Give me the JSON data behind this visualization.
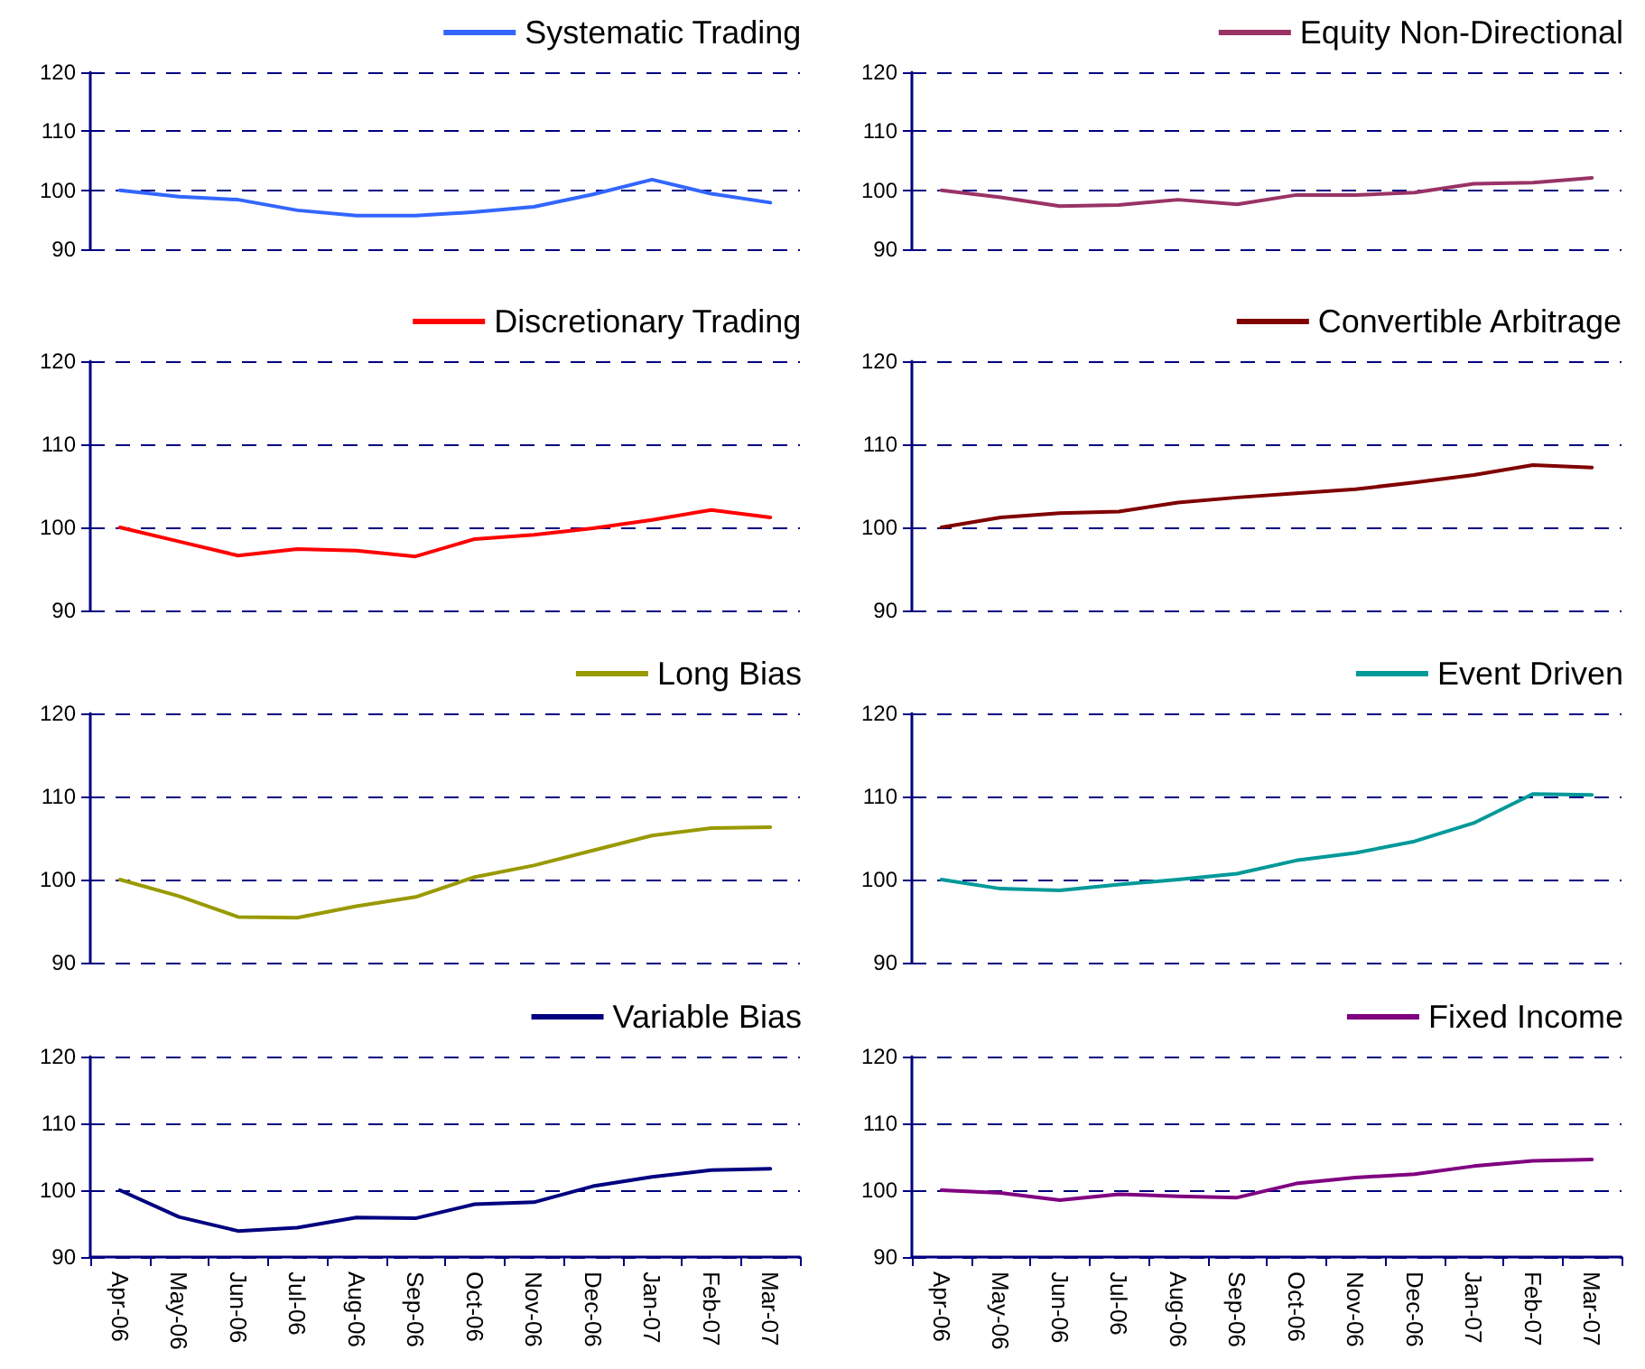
{
  "chart_data": [
    {
      "type": "line",
      "categories": [
        null,
        null,
        null,
        null,
        null,
        null,
        null,
        null,
        null,
        null,
        null,
        null
      ],
      "series": [
        {
          "name": "Systematic Trading",
          "color": "#3366ff",
          "values": [
            100,
            98.9,
            98.4,
            96.6,
            95.7,
            95.7,
            96.3,
            97.2,
            99.3,
            101.8,
            99.4,
            97.9
          ]
        }
      ],
      "ylim": [
        90,
        120
      ],
      "yticks": [
        90,
        100,
        110,
        120
      ],
      "grid": "y",
      "legend": "top right",
      "line_style": "solid",
      "tick_labels": "y"
    },
    {
      "type": "line",
      "categories": [
        null,
        null,
        null,
        null,
        null,
        null,
        null,
        null,
        null,
        null,
        null,
        null
      ],
      "series": [
        {
          "name": "Equity Non-Directional",
          "color": "#993366",
          "values": [
            100,
            98.8,
            97.3,
            97.5,
            98.4,
            97.6,
            99.2,
            99.2,
            99.6,
            101.1,
            101.3,
            102.1
          ]
        }
      ],
      "ylim": [
        90,
        120
      ],
      "yticks": [
        90,
        100,
        110,
        120
      ],
      "grid": "y",
      "legend": "top right",
      "line_style": "solid",
      "tick_labels": "y"
    },
    {
      "type": "line",
      "categories": [
        null,
        null,
        null,
        null,
        null,
        null,
        null,
        null,
        null,
        null,
        null,
        null
      ],
      "series": [
        {
          "name": "Discretionary Trading",
          "color": "#ff0000",
          "values": [
            100,
            98.3,
            96.6,
            97.4,
            97.2,
            96.5,
            98.6,
            99.1,
            99.9,
            100.9,
            102.1,
            101.2
          ]
        }
      ],
      "ylim": [
        90,
        120
      ],
      "yticks": [
        90,
        100,
        110,
        120
      ],
      "grid": "y",
      "legend": "top right",
      "line_style": "solid",
      "tick_labels": "y"
    },
    {
      "type": "line",
      "categories": [
        null,
        null,
        null,
        null,
        null,
        null,
        null,
        null,
        null,
        null,
        null,
        null
      ],
      "series": [
        {
          "name": "Convertible Arbitrage",
          "color": "#800000",
          "values": [
            100,
            101.2,
            101.7,
            101.9,
            103.0,
            103.6,
            104.1,
            104.6,
            105.4,
            106.3,
            107.5,
            107.2
          ]
        }
      ],
      "ylim": [
        90,
        120
      ],
      "yticks": [
        90,
        100,
        110,
        120
      ],
      "grid": "y",
      "legend": "top right",
      "line_style": "solid",
      "tick_labels": "y"
    },
    {
      "type": "line",
      "categories": [
        null,
        null,
        null,
        null,
        null,
        null,
        null,
        null,
        null,
        null,
        null,
        null
      ],
      "series": [
        {
          "name": "Long Bias",
          "color": "#999900",
          "values": [
            100,
            98,
            95.5,
            95.4,
            96.8,
            97.9,
            100.3,
            101.7,
            103.5,
            105.3,
            106.2,
            106.3
          ]
        }
      ],
      "ylim": [
        90,
        120
      ],
      "yticks": [
        90,
        100,
        110,
        120
      ],
      "grid": "y",
      "legend": "top right",
      "line_style": "solid",
      "tick_labels": "y"
    },
    {
      "type": "line",
      "categories": [
        null,
        null,
        null,
        null,
        null,
        null,
        null,
        null,
        null,
        null,
        null,
        null
      ],
      "series": [
        {
          "name": "Event Driven",
          "color": "#009999",
          "values": [
            100,
            98.9,
            98.7,
            99.4,
            100,
            100.7,
            102.3,
            103.2,
            104.6,
            106.8,
            110.3,
            110.2
          ]
        }
      ],
      "ylim": [
        90,
        120
      ],
      "yticks": [
        90,
        100,
        110,
        120
      ],
      "grid": "y",
      "legend": "top right",
      "line_style": "solid",
      "tick_labels": "y"
    },
    {
      "type": "line",
      "categories": [
        "Apr-06",
        "May-06",
        "Jun-06",
        "Jul-06",
        "Aug-06",
        "Sep-06",
        "Oct-06",
        "Nov-06",
        "Dec-06",
        "Jan-07",
        "Feb-07",
        "Mar-07"
      ],
      "series": [
        {
          "name": "Variable Bias",
          "color": "#000080",
          "values": [
            100,
            96,
            93.9,
            94.4,
            95.9,
            95.8,
            97.9,
            98.2,
            100.6,
            102,
            103,
            103.2
          ]
        }
      ],
      "ylim": [
        90,
        120
      ],
      "yticks": [
        90,
        100,
        110,
        120
      ],
      "grid": "y",
      "legend": "top right",
      "line_style": "solid"
    },
    {
      "type": "line",
      "categories": [
        "Apr-06",
        "May-06",
        "Jun-06",
        "Jul-06",
        "Aug-06",
        "Sep-06",
        "Oct-06",
        "Nov-06",
        "Dec-06",
        "Jan-07",
        "Feb-07",
        "Mar-07"
      ],
      "series": [
        {
          "name": "Fixed Income",
          "color": "#800080",
          "values": [
            100,
            99.6,
            98.5,
            99.4,
            99.1,
            98.9,
            101.0,
            101.9,
            102.4,
            103.6,
            104.4,
            104.6
          ]
        }
      ],
      "ylim": [
        90,
        120
      ],
      "yticks": [
        90,
        100,
        110,
        120
      ],
      "grid": "y",
      "legend": "top right",
      "line_style": "solid"
    }
  ]
}
